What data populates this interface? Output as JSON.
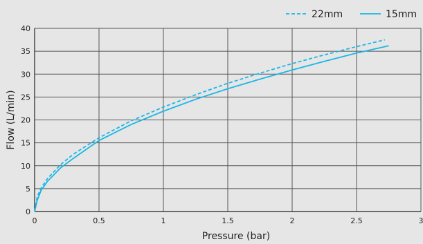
{
  "chart_data": {
    "type": "line",
    "xlabel": "Pressure (bar)",
    "ylabel": "Flow (L/min)",
    "xlim": [
      0,
      3
    ],
    "ylim": [
      0,
      40
    ],
    "xticks": [
      0,
      0.5,
      1,
      1.5,
      2,
      2.5,
      3
    ],
    "xtick_labels": [
      "0",
      "0.5",
      "1",
      "1.5",
      "2",
      "2.5",
      "3"
    ],
    "yticks": [
      0,
      5,
      10,
      15,
      20,
      25,
      30,
      35,
      40
    ],
    "ytick_labels": [
      "0",
      "5",
      "10",
      "15",
      "20",
      "25",
      "30",
      "35",
      "40"
    ],
    "grid": true,
    "legend_position": "top-right",
    "series": [
      {
        "name": "22mm",
        "style": "dashed",
        "color": "#1ab7e4",
        "x": [
          0,
          0.02,
          0.05,
          0.1,
          0.2,
          0.3,
          0.5,
          0.75,
          1.0,
          1.25,
          1.5,
          1.75,
          2.0,
          2.25,
          2.5,
          2.72
        ],
        "y": [
          0,
          3.2,
          5.1,
          7.2,
          10.2,
          12.5,
          16.1,
          19.8,
          22.8,
          25.5,
          28.0,
          30.2,
          32.3,
          34.2,
          36.0,
          37.5
        ]
      },
      {
        "name": "15mm",
        "style": "solid",
        "color": "#1ab7e4",
        "x": [
          0,
          0.02,
          0.05,
          0.1,
          0.2,
          0.3,
          0.5,
          0.75,
          1.0,
          1.25,
          1.5,
          1.75,
          2.0,
          2.25,
          2.5,
          2.75
        ],
        "y": [
          0,
          2.4,
          4.6,
          6.6,
          9.5,
          11.6,
          15.5,
          19.0,
          21.9,
          24.5,
          26.8,
          28.9,
          30.9,
          32.8,
          34.6,
          36.2
        ]
      }
    ]
  }
}
